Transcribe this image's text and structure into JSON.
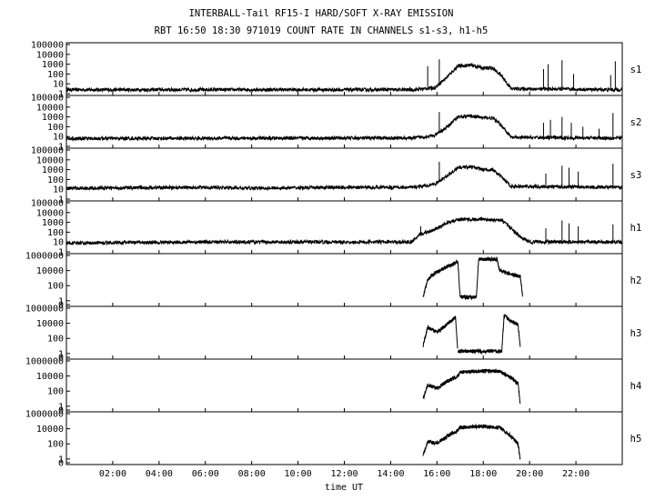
{
  "title": "INTERBALL-Tail RF15-I HARD/SOFT X-RAY EMISSION",
  "subtitle": "RBT 16:50 18:30 971019  COUNT RATE IN CHANNELS s1-s3, h1-h5",
  "chart_data": {
    "type": "line",
    "title": "INTERBALL-Tail RF15-I HARD/SOFT X-RAY EMISSION",
    "subtitle": "RBT 16:50 18:30 971019  COUNT RATE IN CHANNELS s1-s3, h1-h5",
    "xlabel": "time UT",
    "x_unit": "hours UT",
    "xlim": [
      0,
      24
    ],
    "x_ticks": [
      "02:00",
      "04:00",
      "06:00",
      "08:00",
      "10:00",
      "12:00",
      "14:00",
      "16:00",
      "18:00",
      "20:00",
      "22:00"
    ],
    "x_tick_values": [
      2,
      4,
      6,
      8,
      10,
      12,
      14,
      16,
      18,
      20,
      22
    ],
    "y_scale": "log",
    "grid": false,
    "legend": "none",
    "panels": [
      {
        "name": "s1",
        "ylim_log": [
          0,
          5
        ],
        "tick_labels": [
          "100000",
          "10000",
          "1000",
          "100",
          "10",
          "1"
        ],
        "tick_values_log": [
          5,
          4,
          3,
          2,
          1,
          0
        ],
        "series": [
          [
            0,
            0.4
          ],
          [
            15,
            0.4
          ],
          [
            15.9,
            0.6
          ],
          [
            16.4,
            1.6
          ],
          [
            16.9,
            2.8
          ],
          [
            17.5,
            2.9
          ],
          [
            18.0,
            2.6
          ],
          [
            18.4,
            2.6
          ],
          [
            18.8,
            1.8
          ],
          [
            19.2,
            0.5
          ],
          [
            24,
            0.4
          ]
        ],
        "spikes": [
          [
            15.6,
            2.8
          ],
          [
            16.1,
            3.5
          ],
          [
            20.6,
            2.5
          ],
          [
            20.8,
            3.0
          ],
          [
            21.4,
            3.4
          ],
          [
            21.9,
            2.0
          ],
          [
            23.5,
            1.9
          ],
          [
            23.7,
            3.3
          ]
        ]
      },
      {
        "name": "s2",
        "ylim_log": [
          0,
          5
        ],
        "tick_labels": [
          "100000",
          "10000",
          "1000",
          "100",
          "10",
          "1"
        ],
        "tick_values_log": [
          5,
          4,
          3,
          2,
          1,
          0
        ],
        "series": [
          [
            0,
            0.8
          ],
          [
            15,
            0.85
          ],
          [
            15.9,
            1.1
          ],
          [
            16.4,
            1.9
          ],
          [
            16.9,
            3.0
          ],
          [
            17.5,
            3.1
          ],
          [
            18.0,
            2.9
          ],
          [
            18.4,
            2.9
          ],
          [
            18.8,
            2.1
          ],
          [
            19.2,
            0.9
          ],
          [
            24,
            0.85
          ]
        ],
        "spikes": [
          [
            16.1,
            3.5
          ],
          [
            20.6,
            2.4
          ],
          [
            20.9,
            2.7
          ],
          [
            21.4,
            3.0
          ],
          [
            21.8,
            2.4
          ],
          [
            22.3,
            2.0
          ],
          [
            23.0,
            1.8
          ],
          [
            23.6,
            3.4
          ]
        ]
      },
      {
        "name": "s3",
        "ylim_log": [
          0,
          5
        ],
        "tick_labels": [
          "100000",
          "10000",
          "1000",
          "100",
          "10",
          "1"
        ],
        "tick_values_log": [
          5,
          4,
          3,
          2,
          1,
          0
        ],
        "series": [
          [
            0,
            1.1
          ],
          [
            6,
            1.2
          ],
          [
            8,
            1.1
          ],
          [
            12,
            1.2
          ],
          [
            15,
            1.2
          ],
          [
            15.9,
            1.5
          ],
          [
            16.4,
            2.3
          ],
          [
            16.9,
            3.2
          ],
          [
            17.5,
            3.3
          ],
          [
            18.0,
            3.0
          ],
          [
            18.4,
            3.0
          ],
          [
            18.8,
            2.2
          ],
          [
            19.2,
            1.3
          ],
          [
            24,
            1.2
          ]
        ],
        "spikes": [
          [
            16.1,
            3.8
          ],
          [
            20.7,
            2.6
          ],
          [
            21.4,
            3.4
          ],
          [
            21.7,
            3.2
          ],
          [
            22.1,
            2.8
          ],
          [
            23.6,
            3.6
          ]
        ]
      },
      {
        "name": "h1",
        "ylim_log": [
          0,
          5
        ],
        "tick_labels": [
          "100000",
          "10000",
          "1000",
          "100",
          "10",
          "1"
        ],
        "tick_values_log": [
          5,
          4,
          3,
          2,
          1,
          0
        ],
        "series": [
          [
            0,
            0.9
          ],
          [
            6,
            1.0
          ],
          [
            14.9,
            1.0
          ],
          [
            15.3,
            1.8
          ],
          [
            15.8,
            2.2
          ],
          [
            16.5,
            3.0
          ],
          [
            17.0,
            3.3
          ],
          [
            18.0,
            3.3
          ],
          [
            18.8,
            3.2
          ],
          [
            19.2,
            2.4
          ],
          [
            19.6,
            1.5
          ],
          [
            20.0,
            1.0
          ],
          [
            24,
            1.0
          ]
        ],
        "spikes": [
          [
            15.3,
            2.6
          ],
          [
            20.7,
            2.4
          ],
          [
            21.4,
            3.2
          ],
          [
            21.7,
            2.9
          ],
          [
            22.1,
            2.6
          ],
          [
            23.6,
            2.8
          ]
        ]
      },
      {
        "name": "h2",
        "ylim_log": [
          -0.5,
          6
        ],
        "tick_labels": [
          "1000000",
          "10000",
          "100",
          "1",
          "0"
        ],
        "tick_values_log": [
          6,
          4,
          2,
          0,
          -0.5
        ],
        "segments": [
          [
            [
              15.4,
              0.5
            ],
            [
              15.6,
              2.8
            ],
            [
              15.8,
              3.4
            ],
            [
              16.1,
              4.0
            ],
            [
              16.5,
              4.6
            ],
            [
              16.9,
              5.2
            ]
          ],
          [
            [
              16.9,
              5.2
            ],
            [
              17.0,
              0.5
            ],
            [
              17.7,
              0.5
            ],
            [
              17.8,
              5.5
            ],
            [
              18.6,
              5.5
            ],
            [
              18.7,
              4.0
            ],
            [
              19.2,
              3.5
            ],
            [
              19.6,
              3.2
            ],
            [
              19.7,
              0.5
            ]
          ]
        ]
      },
      {
        "name": "h3",
        "ylim_log": [
          -0.5,
          6
        ],
        "tick_labels": [
          "1000000",
          "10000",
          "100",
          "1",
          "0"
        ],
        "tick_values_log": [
          6,
          4,
          2,
          0,
          -0.5
        ],
        "segments": [
          [
            [
              15.4,
              1.0
            ],
            [
              15.6,
              3.5
            ],
            [
              16.0,
              2.8
            ],
            [
              16.4,
              3.8
            ],
            [
              16.8,
              4.8
            ],
            [
              16.9,
              0.3
            ]
          ],
          [
            [
              16.9,
              0.3
            ],
            [
              18.8,
              0.3
            ],
            [
              18.9,
              5.0
            ],
            [
              19.2,
              4.3
            ],
            [
              19.5,
              3.8
            ],
            [
              19.6,
              0.8
            ]
          ]
        ]
      },
      {
        "name": "h4",
        "ylim_log": [
          -0.5,
          6
        ],
        "tick_labels": [
          "1000000",
          "10000",
          "100",
          "1",
          "0"
        ],
        "tick_values_log": [
          6,
          4,
          2,
          0,
          -0.5
        ],
        "segments": [
          [
            [
              15.4,
              1.0
            ],
            [
              15.6,
              2.8
            ],
            [
              16.0,
              2.4
            ],
            [
              16.4,
              3.2
            ],
            [
              16.9,
              4.0
            ],
            [
              17.0,
              4.5
            ],
            [
              18.0,
              4.7
            ],
            [
              18.7,
              4.6
            ],
            [
              19.2,
              3.8
            ],
            [
              19.5,
              3.0
            ],
            [
              19.6,
              0.0
            ]
          ]
        ]
      },
      {
        "name": "h5",
        "ylim_log": [
          -0.5,
          6
        ],
        "tick_labels": [
          "1000000",
          "10000",
          "100",
          "1",
          "0"
        ],
        "tick_values_log": [
          6,
          4,
          2,
          0,
          -0.5
        ],
        "segments": [
          [
            [
              15.4,
              0.5
            ],
            [
              15.6,
              2.3
            ],
            [
              16.0,
              2.1
            ],
            [
              16.4,
              2.9
            ],
            [
              16.9,
              3.8
            ],
            [
              17.0,
              4.2
            ],
            [
              18.0,
              4.3
            ],
            [
              18.7,
              4.2
            ],
            [
              19.2,
              3.0
            ],
            [
              19.5,
              2.0
            ],
            [
              19.6,
              -0.2
            ]
          ]
        ]
      }
    ]
  }
}
